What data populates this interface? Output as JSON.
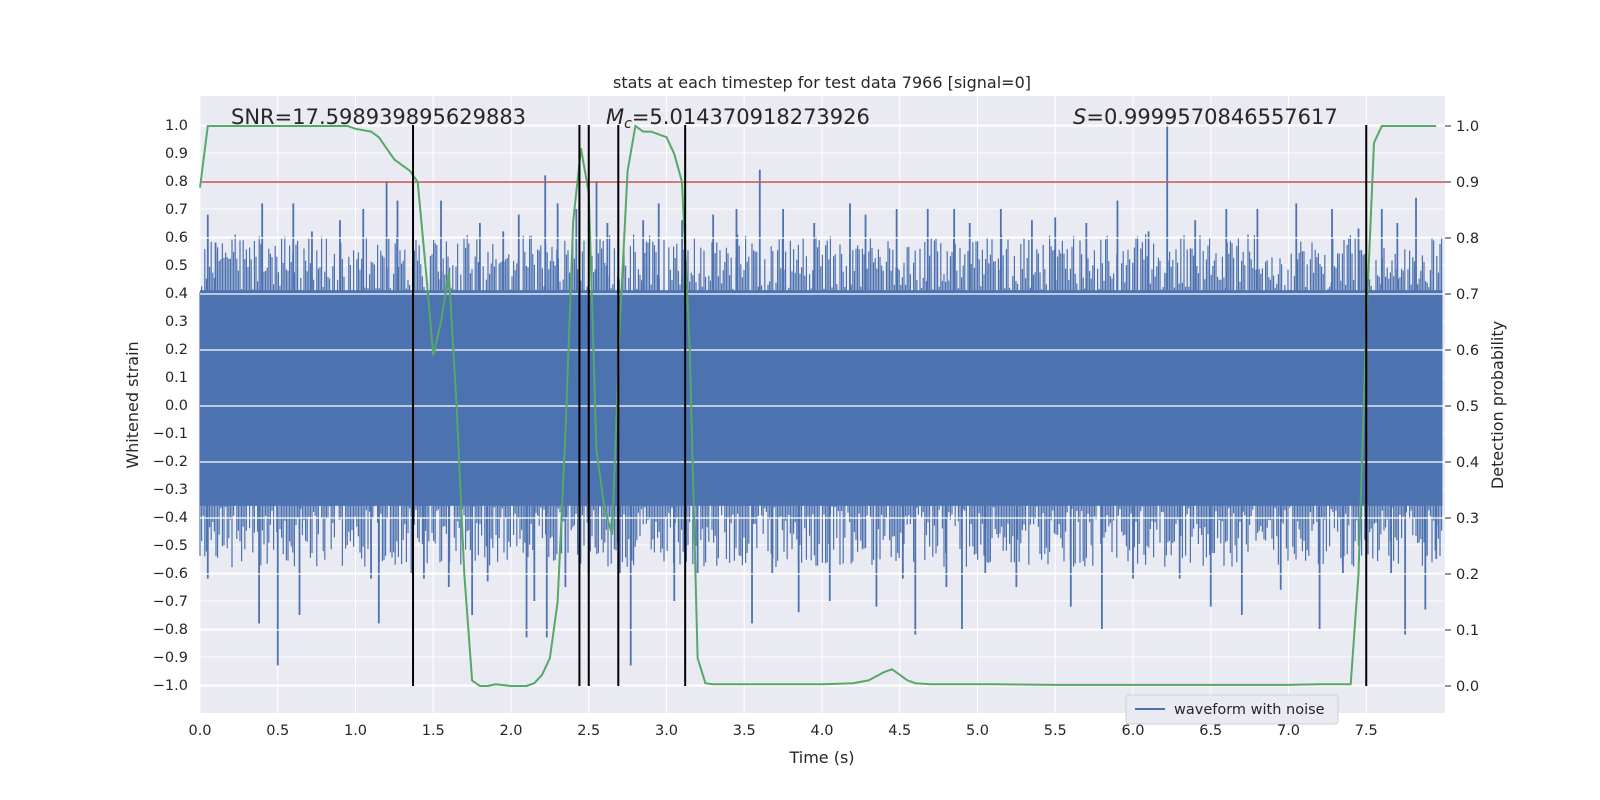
{
  "chart_data": {
    "type": "line",
    "title": "stats at each timestep for test data 7966 [signal=0]",
    "xlabel": "Time (s)",
    "ylabel": "Whitened strain",
    "y2label": "Detection probability",
    "xlim": [
      0.0,
      7.99
    ],
    "ylim": [
      -1.05,
      1.05
    ],
    "y2lim": [
      -0.045,
      1.045
    ],
    "x_ticks": [
      "0.0",
      "0.5",
      "1.0",
      "1.5",
      "2.0",
      "2.5",
      "3.0",
      "3.5",
      "4.0",
      "4.5",
      "5.0",
      "5.5",
      "6.0",
      "6.5",
      "7.0",
      "7.5"
    ],
    "y_ticks": [
      "1.0",
      "0.9",
      "0.8",
      "0.7",
      "0.6",
      "0.5",
      "0.4",
      "0.3",
      "0.2",
      "0.1",
      "0.0",
      "-0.1",
      "-0.2",
      "-0.3",
      "-0.4",
      "-0.5",
      "-0.6",
      "-0.7",
      "-0.8",
      "-0.9",
      "-1.0"
    ],
    "y2_ticks": [
      "1.0",
      "0.9",
      "0.8",
      "0.7",
      "0.6",
      "0.5",
      "0.4",
      "0.3",
      "0.2",
      "0.1",
      "0.0"
    ],
    "grid": true,
    "legend": {
      "entries": [
        "waveform with noise"
      ],
      "placement": "lower-right"
    },
    "annotations": {
      "snr": "SNR=17.598939895629883",
      "mc_symbol": "M",
      "mc_sub": "c",
      "mc_value": "=5.014370918273926",
      "s_symbol": "S",
      "s_value": "=0.9999570846557617"
    },
    "threshold": {
      "axis": "right",
      "value": 0.9,
      "color": "#c44e52"
    },
    "vertical_lines": [
      1.37,
      2.44,
      2.5,
      2.69,
      3.12,
      7.5
    ],
    "waveform": {
      "name": "waveform with noise",
      "color": "#4c72b0",
      "x_range": [
        0.0,
        7.99
      ],
      "core_band": [
        -0.36,
        0.41
      ],
      "spikes": [
        {
          "x": 0.05,
          "y": 0.68
        },
        {
          "x": 0.1,
          "y": 0.58
        },
        {
          "x": 0.05,
          "y": -0.62
        },
        {
          "x": 0.38,
          "y": -0.78
        },
        {
          "x": 0.4,
          "y": 0.72
        },
        {
          "x": 0.5,
          "y": -0.93
        },
        {
          "x": 0.6,
          "y": 0.72
        },
        {
          "x": 0.64,
          "y": -0.75
        },
        {
          "x": 0.72,
          "y": 0.62
        },
        {
          "x": 0.9,
          "y": 0.66
        },
        {
          "x": 1.05,
          "y": 0.7
        },
        {
          "x": 1.1,
          "y": -0.62
        },
        {
          "x": 1.15,
          "y": -0.78
        },
        {
          "x": 1.2,
          "y": 0.8
        },
        {
          "x": 1.27,
          "y": 0.73
        },
        {
          "x": 1.36,
          "y": -0.6
        },
        {
          "x": 1.44,
          "y": -0.62
        },
        {
          "x": 1.55,
          "y": 0.73
        },
        {
          "x": 1.6,
          "y": -0.65
        },
        {
          "x": 1.75,
          "y": -0.75
        },
        {
          "x": 1.8,
          "y": 0.65
        },
        {
          "x": 1.85,
          "y": -0.63
        },
        {
          "x": 1.95,
          "y": 0.62
        },
        {
          "x": 2.05,
          "y": 0.68
        },
        {
          "x": 2.1,
          "y": -0.83
        },
        {
          "x": 2.15,
          "y": -0.7
        },
        {
          "x": 2.22,
          "y": 0.82
        },
        {
          "x": 2.23,
          "y": -0.83
        },
        {
          "x": 2.3,
          "y": 0.72
        },
        {
          "x": 2.35,
          "y": -0.65
        },
        {
          "x": 2.42,
          "y": 0.7
        },
        {
          "x": 2.5,
          "y": -0.6
        },
        {
          "x": 2.55,
          "y": 0.8
        },
        {
          "x": 2.62,
          "y": 0.65
        },
        {
          "x": 2.7,
          "y": -0.6
        },
        {
          "x": 2.77,
          "y": -0.93
        },
        {
          "x": 2.85,
          "y": 0.66
        },
        {
          "x": 2.95,
          "y": 0.72
        },
        {
          "x": 3.05,
          "y": -0.7
        },
        {
          "x": 3.1,
          "y": 0.66
        },
        {
          "x": 3.2,
          "y": -0.6
        },
        {
          "x": 3.3,
          "y": 0.68
        },
        {
          "x": 3.45,
          "y": 0.7
        },
        {
          "x": 3.55,
          "y": -0.78
        },
        {
          "x": 3.6,
          "y": 0.84
        },
        {
          "x": 3.68,
          "y": -0.6
        },
        {
          "x": 3.75,
          "y": 0.7
        },
        {
          "x": 3.85,
          "y": -0.74
        },
        {
          "x": 3.95,
          "y": 0.65
        },
        {
          "x": 4.05,
          "y": -0.7
        },
        {
          "x": 4.18,
          "y": 0.72
        },
        {
          "x": 4.28,
          "y": 0.68
        },
        {
          "x": 4.35,
          "y": -0.72
        },
        {
          "x": 4.48,
          "y": 0.7
        },
        {
          "x": 4.52,
          "y": -0.62
        },
        {
          "x": 4.6,
          "y": -0.82
        },
        {
          "x": 4.68,
          "y": 0.7
        },
        {
          "x": 4.8,
          "y": -0.65
        },
        {
          "x": 4.85,
          "y": 0.7
        },
        {
          "x": 4.9,
          "y": -0.8
        },
        {
          "x": 4.95,
          "y": 0.65
        },
        {
          "x": 5.05,
          "y": -0.6
        },
        {
          "x": 5.15,
          "y": 0.7
        },
        {
          "x": 5.25,
          "y": -0.65
        },
        {
          "x": 5.35,
          "y": 0.66
        },
        {
          "x": 5.5,
          "y": 0.67
        },
        {
          "x": 5.6,
          "y": -0.72
        },
        {
          "x": 5.7,
          "y": 0.65
        },
        {
          "x": 5.8,
          "y": -0.8
        },
        {
          "x": 5.9,
          "y": 0.73
        },
        {
          "x": 6.0,
          "y": -0.62
        },
        {
          "x": 6.1,
          "y": 0.62
        },
        {
          "x": 6.22,
          "y": 1.0
        },
        {
          "x": 6.3,
          "y": -0.62
        },
        {
          "x": 6.4,
          "y": 0.66
        },
        {
          "x": 6.5,
          "y": -0.72
        },
        {
          "x": 6.6,
          "y": 0.7
        },
        {
          "x": 6.7,
          "y": -0.75
        },
        {
          "x": 6.8,
          "y": 0.7
        },
        {
          "x": 6.95,
          "y": -0.66
        },
        {
          "x": 7.05,
          "y": 0.72
        },
        {
          "x": 7.2,
          "y": -0.8
        },
        {
          "x": 7.28,
          "y": 0.7
        },
        {
          "x": 7.35,
          "y": -0.6
        },
        {
          "x": 7.45,
          "y": 0.63
        },
        {
          "x": 7.6,
          "y": 0.7
        },
        {
          "x": 7.66,
          "y": -0.6
        },
        {
          "x": 7.7,
          "y": 0.65
        },
        {
          "x": 7.75,
          "y": -0.82
        },
        {
          "x": 7.82,
          "y": 0.74
        },
        {
          "x": 7.88,
          "y": -0.73
        },
        {
          "x": 7.95,
          "y": -0.55
        }
      ]
    },
    "probability": {
      "color": "#55a868",
      "x": [
        0.0,
        0.05,
        0.1,
        0.2,
        0.4,
        0.6,
        0.8,
        0.95,
        1.0,
        1.1,
        1.15,
        1.2,
        1.25,
        1.3,
        1.35,
        1.4,
        1.45,
        1.5,
        1.55,
        1.6,
        1.65,
        1.7,
        1.75,
        1.8,
        1.85,
        1.9,
        2.0,
        2.1,
        2.15,
        2.2,
        2.25,
        2.3,
        2.35,
        2.4,
        2.45,
        2.5,
        2.55,
        2.6,
        2.65,
        2.7,
        2.75,
        2.8,
        2.85,
        2.9,
        3.0,
        3.05,
        3.1,
        3.15,
        3.2,
        3.25,
        3.3,
        3.4,
        3.6,
        3.8,
        4.0,
        4.2,
        4.3,
        4.4,
        4.45,
        4.5,
        4.55,
        4.6,
        4.7,
        4.8,
        4.9,
        5.0,
        5.1,
        5.5,
        6.0,
        6.5,
        7.0,
        7.2,
        7.3,
        7.35,
        7.4,
        7.45,
        7.5,
        7.55,
        7.6,
        7.65,
        7.7,
        7.8,
        7.95
      ],
      "y": [
        0.89,
        1.0,
        1.0,
        1.0,
        1.0,
        1.0,
        1.0,
        1.0,
        0.995,
        0.99,
        0.98,
        0.96,
        0.94,
        0.93,
        0.92,
        0.9,
        0.75,
        0.59,
        0.65,
        0.74,
        0.5,
        0.2,
        0.01,
        0.0,
        0.0,
        0.003,
        0.0,
        0.0,
        0.005,
        0.02,
        0.05,
        0.15,
        0.45,
        0.83,
        0.96,
        0.88,
        0.42,
        0.32,
        0.27,
        0.65,
        0.92,
        1.0,
        0.99,
        0.99,
        0.98,
        0.95,
        0.9,
        0.6,
        0.05,
        0.005,
        0.003,
        0.003,
        0.003,
        0.003,
        0.003,
        0.005,
        0.01,
        0.025,
        0.03,
        0.02,
        0.01,
        0.005,
        0.003,
        0.003,
        0.003,
        0.003,
        0.003,
        0.002,
        0.002,
        0.002,
        0.002,
        0.003,
        0.003,
        0.003,
        0.003,
        0.2,
        0.65,
        0.97,
        1.0,
        1.0,
        1.0,
        1.0,
        1.0
      ]
    }
  }
}
